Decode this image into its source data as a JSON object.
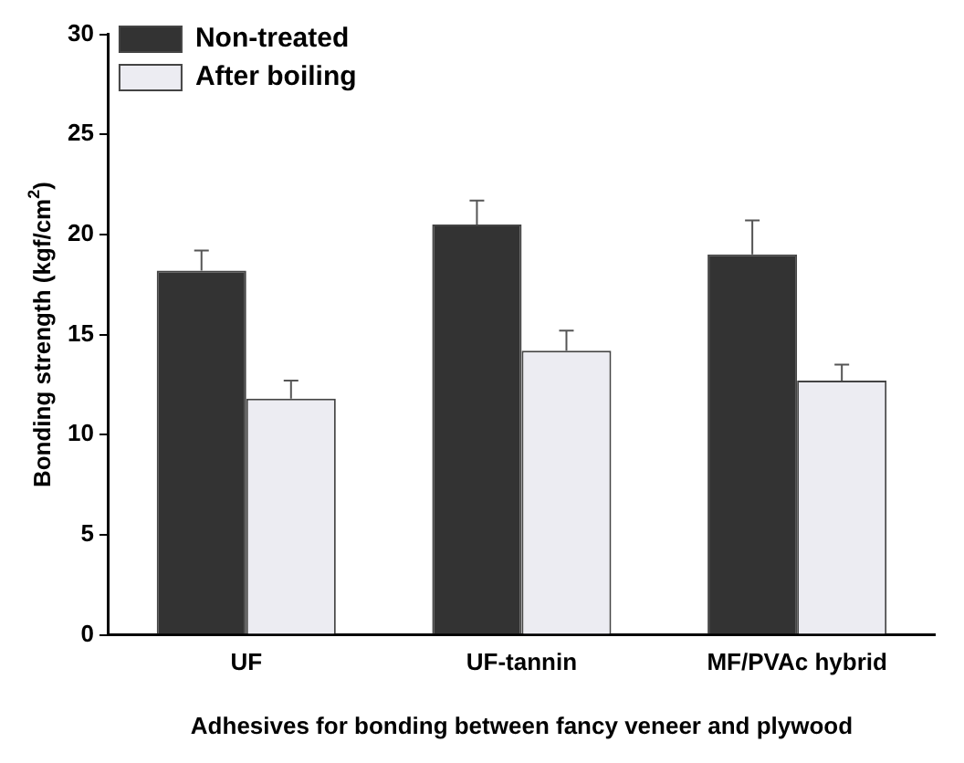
{
  "chart_data": {
    "type": "bar",
    "xlabel": "Adhesives for bonding between fancy veneer and plywood",
    "ylabel": "Bonding strength (kgf/cm$^{2}$)",
    "categories": [
      "UF",
      "UF-tannin",
      "MF/PVAc hybrid"
    ],
    "series": [
      {
        "name": "Non-treated",
        "color": "#333333",
        "values": [
          18.2,
          20.5,
          19.0
        ],
        "errors": [
          [
            18.2,
            19.2
          ],
          [
            20.5,
            21.7
          ],
          [
            19.0,
            20.7
          ]
        ]
      },
      {
        "name": "After boiling",
        "color": "#ececf2",
        "values": [
          11.8,
          14.2,
          12.7
        ],
        "errors": [
          [
            11.8,
            12.7
          ],
          [
            14.2,
            15.2
          ],
          [
            12.7,
            13.5
          ]
        ]
      }
    ],
    "ylim": [
      0,
      30
    ],
    "yticks": [
      0,
      5,
      10,
      15,
      20,
      25,
      30
    ],
    "grid": false,
    "legend": "top left"
  }
}
